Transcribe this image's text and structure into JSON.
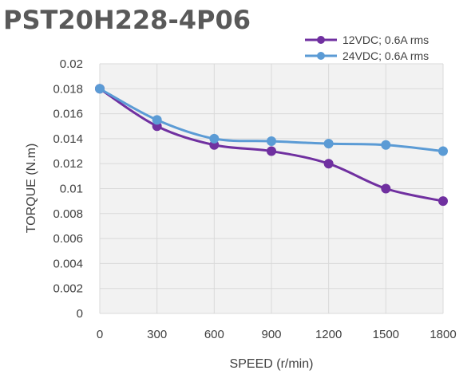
{
  "chart_data": {
    "type": "line",
    "title": "PST20H228-4P06",
    "xlabel": "SPEED (r/min)",
    "ylabel": "TORQUE (N.m)",
    "x": [
      0,
      300,
      600,
      900,
      1200,
      1500,
      1800
    ],
    "x_tick_labels": [
      "0",
      "300",
      "600",
      "900",
      "1200",
      "1500",
      "1800"
    ],
    "y_tick_labels": [
      "0",
      "0.002",
      "0.004",
      "0.006",
      "0.008",
      "0.01",
      "0.012",
      "0.014",
      "0.016",
      "0.018",
      "0.02"
    ],
    "ylim": [
      0,
      0.02
    ],
    "grid": true,
    "legend": "top-right",
    "series": [
      {
        "name": "12VDC; 0.6A rms",
        "color": "#7030a0",
        "values": [
          0.018,
          0.015,
          0.0135,
          0.013,
          0.012,
          0.01,
          0.009
        ]
      },
      {
        "name": "24VDC; 0.6A rms",
        "color": "#5b9bd5",
        "values": [
          0.018,
          0.0155,
          0.014,
          0.0138,
          0.0136,
          0.0135,
          0.013
        ]
      }
    ]
  }
}
